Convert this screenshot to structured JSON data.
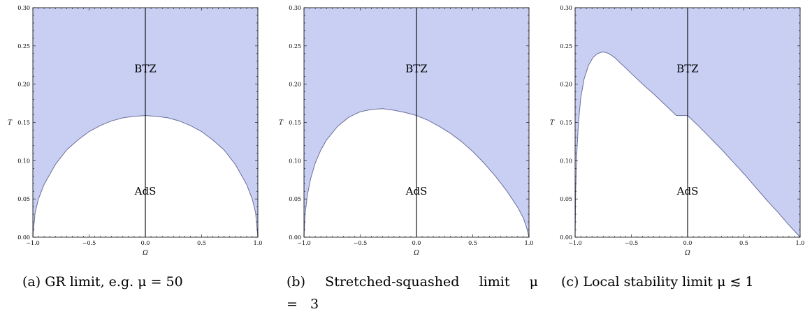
{
  "chart_data": [
    {
      "type": "area",
      "xlabel": "Ω",
      "ylabel": "T",
      "xlim": [
        -1.0,
        1.0
      ],
      "ylim": [
        0.0,
        0.3
      ],
      "xticks": [
        "−1.0",
        "−0.5",
        "0.0",
        "0.5",
        "1.0"
      ],
      "yticks": [
        "0.00",
        "0.05",
        "0.10",
        "0.15",
        "0.20",
        "0.25",
        "0.30"
      ],
      "region_labels": {
        "upper": "BTZ",
        "lower": "AdS"
      },
      "region_label_pos": {
        "upper": [
          0.0,
          0.22
        ],
        "lower": [
          0.0,
          0.06
        ]
      },
      "fill_color": "#c8cff3",
      "boundary_color": "#6b6f9a",
      "boundary": {
        "name": "",
        "x": [
          -1.0,
          -0.98,
          -0.95,
          -0.9,
          -0.8,
          -0.7,
          -0.6,
          -0.5,
          -0.4,
          -0.3,
          -0.2,
          -0.1,
          0.0,
          0.1,
          0.2,
          0.3,
          0.4,
          0.5,
          0.6,
          0.7,
          0.8,
          0.9,
          0.95,
          0.98,
          1.0
        ],
        "y": [
          0.0,
          0.032,
          0.05,
          0.069,
          0.095,
          0.114,
          0.127,
          0.138,
          0.146,
          0.152,
          0.156,
          0.158,
          0.159,
          0.158,
          0.156,
          0.152,
          0.146,
          0.138,
          0.127,
          0.114,
          0.095,
          0.069,
          0.05,
          0.032,
          0.0
        ]
      },
      "caption": "(a) GR limit, e.g. μ = 50"
    },
    {
      "type": "area",
      "xlabel": "Ω",
      "ylabel": "T",
      "xlim": [
        -1.0,
        1.0
      ],
      "ylim": [
        0.0,
        0.3
      ],
      "xticks": [
        "−1.0",
        "−0.5",
        "0.0",
        "0.5",
        "1.0"
      ],
      "yticks": [
        "0.00",
        "0.05",
        "0.10",
        "0.15",
        "0.20",
        "0.25",
        "0.30"
      ],
      "region_labels": {
        "upper": "BTZ",
        "lower": "AdS"
      },
      "region_label_pos": {
        "upper": [
          0.0,
          0.22
        ],
        "lower": [
          0.0,
          0.06
        ]
      },
      "fill_color": "#c8cff3",
      "boundary_color": "#6b6f9a",
      "boundary": {
        "name": "",
        "x": [
          -1.0,
          -0.99,
          -0.97,
          -0.94,
          -0.9,
          -0.85,
          -0.8,
          -0.7,
          -0.6,
          -0.5,
          -0.4,
          -0.3,
          -0.2,
          -0.1,
          0.0,
          0.1,
          0.2,
          0.3,
          0.4,
          0.5,
          0.6,
          0.7,
          0.8,
          0.9,
          0.95,
          0.98,
          1.0
        ],
        "y": [
          0.0,
          0.03,
          0.055,
          0.077,
          0.097,
          0.114,
          0.127,
          0.145,
          0.157,
          0.164,
          0.167,
          0.168,
          0.166,
          0.163,
          0.159,
          0.153,
          0.145,
          0.136,
          0.125,
          0.112,
          0.097,
          0.08,
          0.061,
          0.039,
          0.025,
          0.012,
          0.0
        ]
      },
      "caption": "(b) Stretched-squashed limit μ = 3"
    },
    {
      "type": "area",
      "xlabel": "Ω",
      "ylabel": "T",
      "xlim": [
        -1.0,
        1.0
      ],
      "ylim": [
        0.0,
        0.3
      ],
      "xticks": [
        "−1.0",
        "−0.5",
        "0.0",
        "0.5",
        "1.0"
      ],
      "yticks": [
        "0.00",
        "0.05",
        "0.10",
        "0.15",
        "0.20",
        "0.25",
        "0.30"
      ],
      "region_labels": {
        "upper": "BTZ",
        "lower": "AdS"
      },
      "region_label_pos": {
        "upper": [
          0.0,
          0.22
        ],
        "lower": [
          0.0,
          0.06
        ]
      },
      "fill_color": "#c8cff3",
      "boundary_color": "#6b6f9a",
      "boundary": {
        "name": "",
        "x": [
          -1.0,
          -0.995,
          -0.985,
          -0.97,
          -0.95,
          -0.92,
          -0.88,
          -0.84,
          -0.8,
          -0.76,
          -0.74,
          -0.7,
          -0.65,
          -0.6,
          -0.5,
          -0.4,
          -0.3,
          -0.2,
          -0.1,
          0.0,
          0.1,
          0.2,
          0.3,
          0.4,
          0.5,
          0.6,
          0.7,
          0.8,
          0.9,
          0.95,
          1.0
        ],
        "y": [
          0.0,
          0.06,
          0.11,
          0.15,
          0.182,
          0.207,
          0.225,
          0.235,
          0.24,
          0.242,
          0.242,
          0.24,
          0.235,
          0.228,
          0.214,
          0.2,
          0.187,
          0.173,
          0.159,
          0.159,
          0.145,
          0.13,
          0.115,
          0.099,
          0.083,
          0.066,
          0.049,
          0.033,
          0.016,
          0.008,
          0.0
        ]
      },
      "caption": "(c) Local stability limit μ ≲ 1"
    }
  ]
}
